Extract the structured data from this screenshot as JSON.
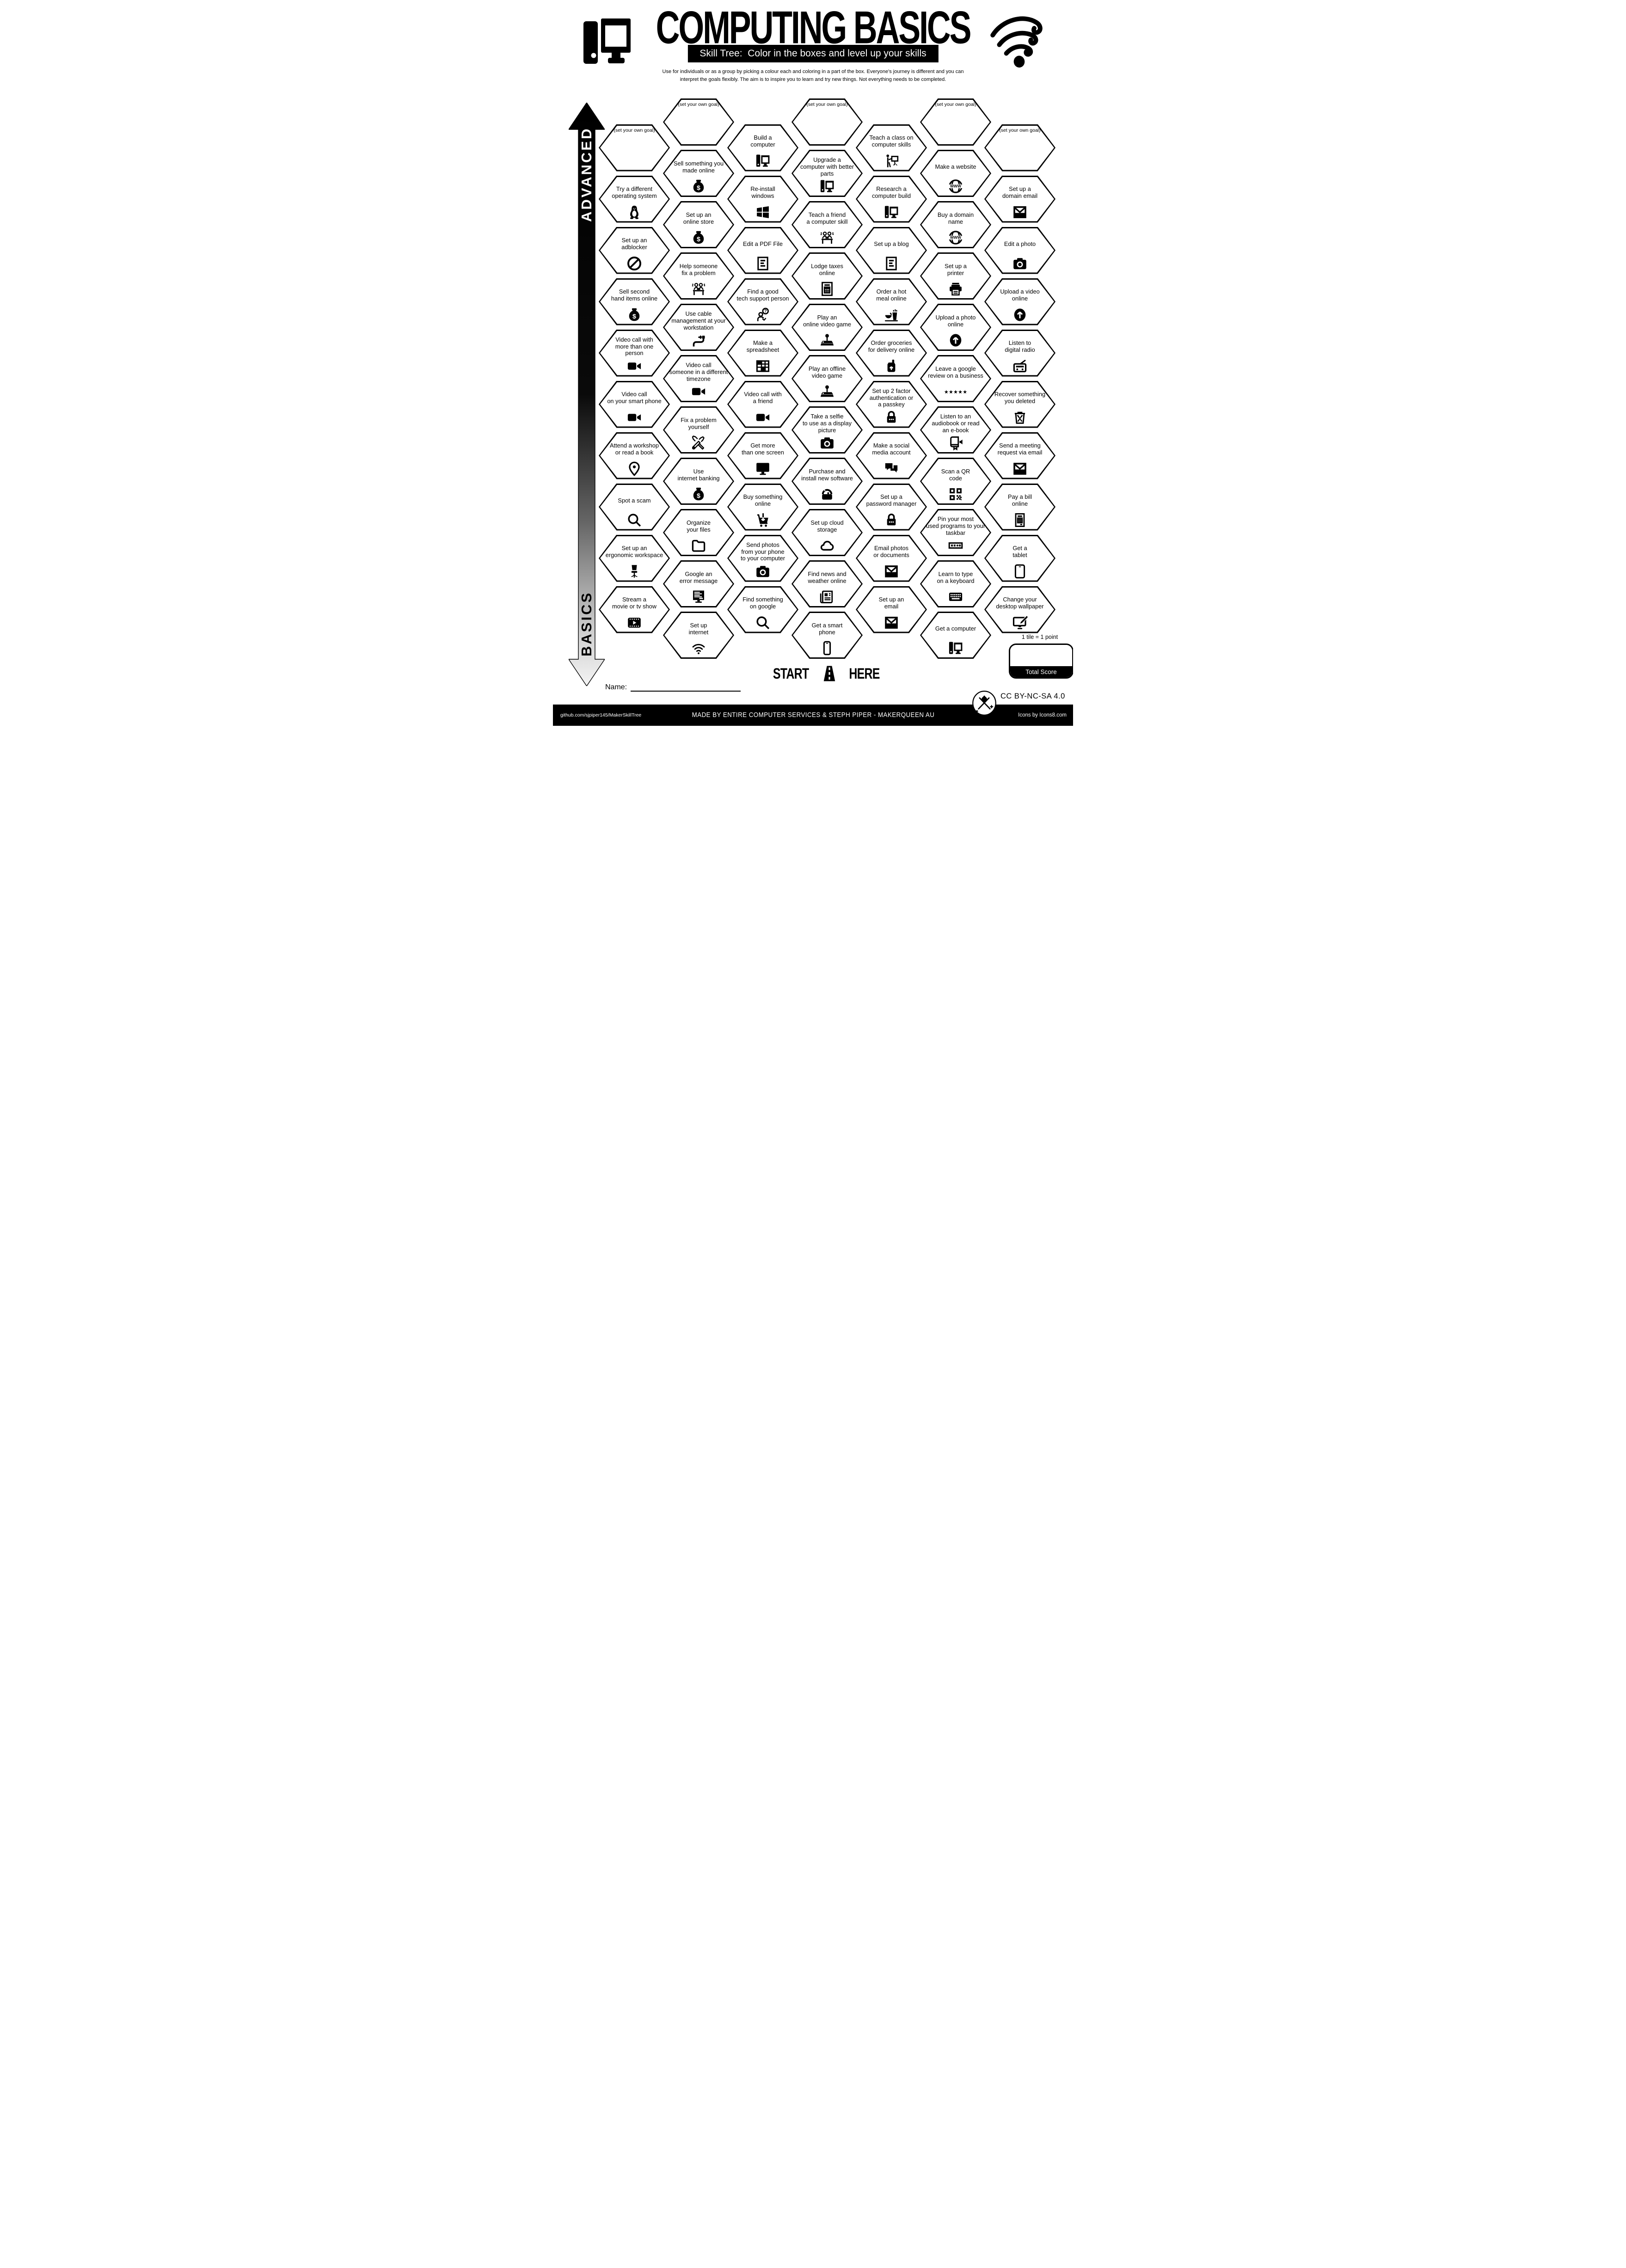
{
  "header": {
    "title": "COMPUTING BASICS",
    "subtitle": "Skill Tree:  Color in the boxes and level up your skills",
    "description": "Use for individuals or as a group by picking a colour each and coloring in a part of the box.  Everyone's journey is different and you can\ninterpret the goals flexibly.  The aim is to inspire you to learn and try new things. Not everything needs to be completed."
  },
  "axis": {
    "top_label": "ADVANCED",
    "bottom_label": "BASICS"
  },
  "grid": {
    "columns": [
      {
        "tiles": [
          {
            "label": "(set your own goal)",
            "goal": true
          },
          {
            "label": "Try a different\noperating system",
            "icon": "tux-penguin"
          },
          {
            "label": "Set up an\nadblocker",
            "icon": "no-entry"
          },
          {
            "label": "Sell second\nhand items online",
            "icon": "money-bag"
          },
          {
            "label": "Video call with\nmore than one\nperson",
            "icon": "video-camera"
          },
          {
            "label": "Video call\non your smart phone",
            "icon": "video-camera"
          },
          {
            "label": "Attend a workshop\nor read a book",
            "icon": "location-pin"
          },
          {
            "label": "Spot a scam",
            "icon": "magnifier"
          },
          {
            "label": "Set up an\nergonomic workspace",
            "icon": "office-chair"
          },
          {
            "label": "Stream a\nmovie or tv show",
            "icon": "film-frame"
          }
        ]
      },
      {
        "tiles": [
          {
            "label": "(set your own goal)",
            "goal": true
          },
          {
            "label": "Sell something you\nmade online",
            "icon": "money-bag"
          },
          {
            "label": "Set up an\nonline store",
            "icon": "money-bag"
          },
          {
            "label": "Help someone\nfix a problem",
            "icon": "people-at-desk"
          },
          {
            "label": "Use cable\nmanagement at your\nworkstation",
            "icon": "cable-plug"
          },
          {
            "label": "Video call\nsomeone in a different\ntimezone",
            "icon": "video-camera"
          },
          {
            "label": "Fix a problem\nyourself",
            "icon": "crossed-tools"
          },
          {
            "label": "Use\ninternet banking",
            "icon": "money-bag"
          },
          {
            "label": "Organize\nyour files",
            "icon": "folder"
          },
          {
            "label": "Google an\nerror message",
            "icon": "error-screen"
          },
          {
            "label": "Set up\ninternet",
            "icon": "wifi"
          }
        ]
      },
      {
        "tiles": [
          {
            "label": "Build a\ncomputer",
            "icon": "desktop-computer"
          },
          {
            "label": "Re-install\nwindows",
            "icon": "windows-logo"
          },
          {
            "label": "Edit a PDF File",
            "icon": "document-lines"
          },
          {
            "label": "Find a good\ntech support person",
            "icon": "person-question"
          },
          {
            "label": "Make a\nspreadsheet",
            "icon": "spreadsheet"
          },
          {
            "label": "Video call with\na friend",
            "icon": "video-camera"
          },
          {
            "label": "Get more\nthan one screen",
            "icon": "monitor"
          },
          {
            "label": "Buy something\nonline",
            "icon": "shopping-cart"
          },
          {
            "label": "Send photos\nfrom your phone\nto your computer",
            "icon": "camera"
          },
          {
            "label": "Find something\non google",
            "icon": "magnifier"
          }
        ]
      },
      {
        "tiles": [
          {
            "label": "(set your own goal)",
            "goal": true
          },
          {
            "label": "Upgrade a\ncomputer with better\nparts",
            "icon": "desktop-computer"
          },
          {
            "label": "Teach a friend\na computer skill",
            "icon": "people-at-desk"
          },
          {
            "label": "Lodge taxes\nonline",
            "icon": "tax-document"
          },
          {
            "label": "Play an\nonline video game",
            "icon": "joystick"
          },
          {
            "label": "Play an offline\nvideo game",
            "icon": "joystick"
          },
          {
            "label": "Take a selfie\nto use as a display\npicture",
            "icon": "camera"
          },
          {
            "label": "Purchase and\ninstall new software",
            "icon": "shopping-bag"
          },
          {
            "label": "Set up cloud\nstorage",
            "icon": "cloud"
          },
          {
            "label": "Find news and\nweather online",
            "icon": "newspaper"
          },
          {
            "label": "Get a smart\nphone",
            "icon": "smartphone"
          }
        ]
      },
      {
        "tiles": [
          {
            "label": "Teach a class on\ncomputer skills",
            "icon": "presenter-board"
          },
          {
            "label": "Research a\ncomputer build",
            "icon": "desktop-computer"
          },
          {
            "label": "Set up a blog",
            "icon": "document-lines"
          },
          {
            "label": "Order a hot\nmeal online",
            "icon": "hot-meal"
          },
          {
            "label": "Order groceries\nfor delivery online",
            "icon": "grocery-bag"
          },
          {
            "label": "Set up 2 factor\nauthentication or\na passkey",
            "icon": "padlock"
          },
          {
            "label": "Make a social\nmedia account",
            "icon": "chat-bubbles"
          },
          {
            "label": "Set up a\npassword manager",
            "icon": "padlock"
          },
          {
            "label": "Email photos\nor documents",
            "icon": "envelope"
          },
          {
            "label": "Set up an\nemail",
            "icon": "envelope"
          }
        ]
      },
      {
        "tiles": [
          {
            "label": "(set your own goal)",
            "goal": true
          },
          {
            "label": "Make a website",
            "icon": "www-globe"
          },
          {
            "label": "Buy a domain\nname",
            "icon": "www-globe"
          },
          {
            "label": "Set up a\nprinter",
            "icon": "printer"
          },
          {
            "label": "Upload a photo\nonline",
            "icon": "upload-circle"
          },
          {
            "label": "Leave a google\nreview on a business",
            "icon": "five-stars"
          },
          {
            "label": "Listen to an\naudiobook or read\nan e-book",
            "icon": "audiobook"
          },
          {
            "label": "Scan a QR\ncode",
            "icon": "qr-code"
          },
          {
            "label": "Pin your most\nused programs to your\ntaskbar",
            "icon": "taskbar"
          },
          {
            "label": "Learn to type\non a keyboard",
            "icon": "keyboard"
          },
          {
            "label": "Get a computer",
            "icon": "desktop-computer"
          }
        ]
      },
      {
        "tiles": [
          {
            "label": "(set your own goal)",
            "goal": true
          },
          {
            "label": "Set up a\ndomain email",
            "icon": "envelope"
          },
          {
            "label": "Edit a photo",
            "icon": "camera"
          },
          {
            "label": "Upload a video\nonline",
            "icon": "upload-circle"
          },
          {
            "label": "Listen to\ndigital radio",
            "icon": "radio"
          },
          {
            "label": "Recover something\nyou deleted",
            "icon": "trash-can"
          },
          {
            "label": "Send a meeting\nrequest via email",
            "icon": "envelope"
          },
          {
            "label": "Pay a bill\nonline",
            "icon": "invoice"
          },
          {
            "label": "Get a\ntablet",
            "icon": "tablet"
          },
          {
            "label": "Change your\ndesktop wallpaper",
            "icon": "wallpaper-pencil"
          }
        ]
      }
    ]
  },
  "start": {
    "start_label": "START",
    "here_label": "HERE"
  },
  "scoring": {
    "points_note": "1 tile = 1 point",
    "total_score_label": "Total Score"
  },
  "name_label": "Name:",
  "license_label": "CC BY-NC-SA 4.0",
  "footer": {
    "left": "github.com/sjpiper145/MakerSkillTree",
    "center": "MADE BY ENTIRE COMPUTER SERVICES & STEPH PIPER  -  MAKERQUEEN AU",
    "right": "Icons by Icons8.com"
  },
  "colors": {
    "ink": "#000000",
    "paper": "#ffffff"
  }
}
